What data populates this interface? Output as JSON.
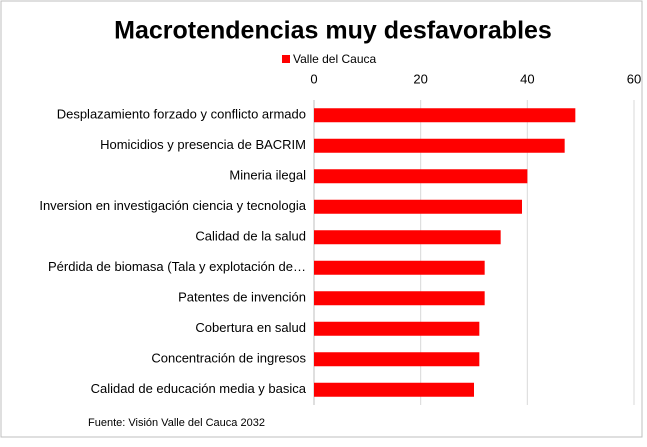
{
  "chart_data": {
    "type": "bar",
    "orientation": "horizontal",
    "title": "Macrotendencias muy desfavorables",
    "categories": [
      "Desplazamiento forzado y conflicto armado",
      "Homicidios y presencia de BACRIM",
      "Mineria ilegal",
      "Inversion en investigación ciencia y tecnologia",
      "Calidad de la salud",
      "Pérdida de biomasa (Tala y explotación de…",
      "Patentes de invención",
      "Cobertura en salud",
      "Concentración de ingresos",
      "Calidad de educación media y basica"
    ],
    "series": [
      {
        "name": "Valle del Cauca",
        "color": "#ff0000",
        "values": [
          49,
          47,
          40,
          39,
          35,
          32,
          32,
          31,
          31,
          30
        ]
      }
    ],
    "xlim": [
      0,
      60
    ],
    "xticks": [
      0,
      20,
      40,
      60
    ],
    "grid": true,
    "legend": "top",
    "source": "Fuente: Visión Valle del Cauca 2032"
  }
}
